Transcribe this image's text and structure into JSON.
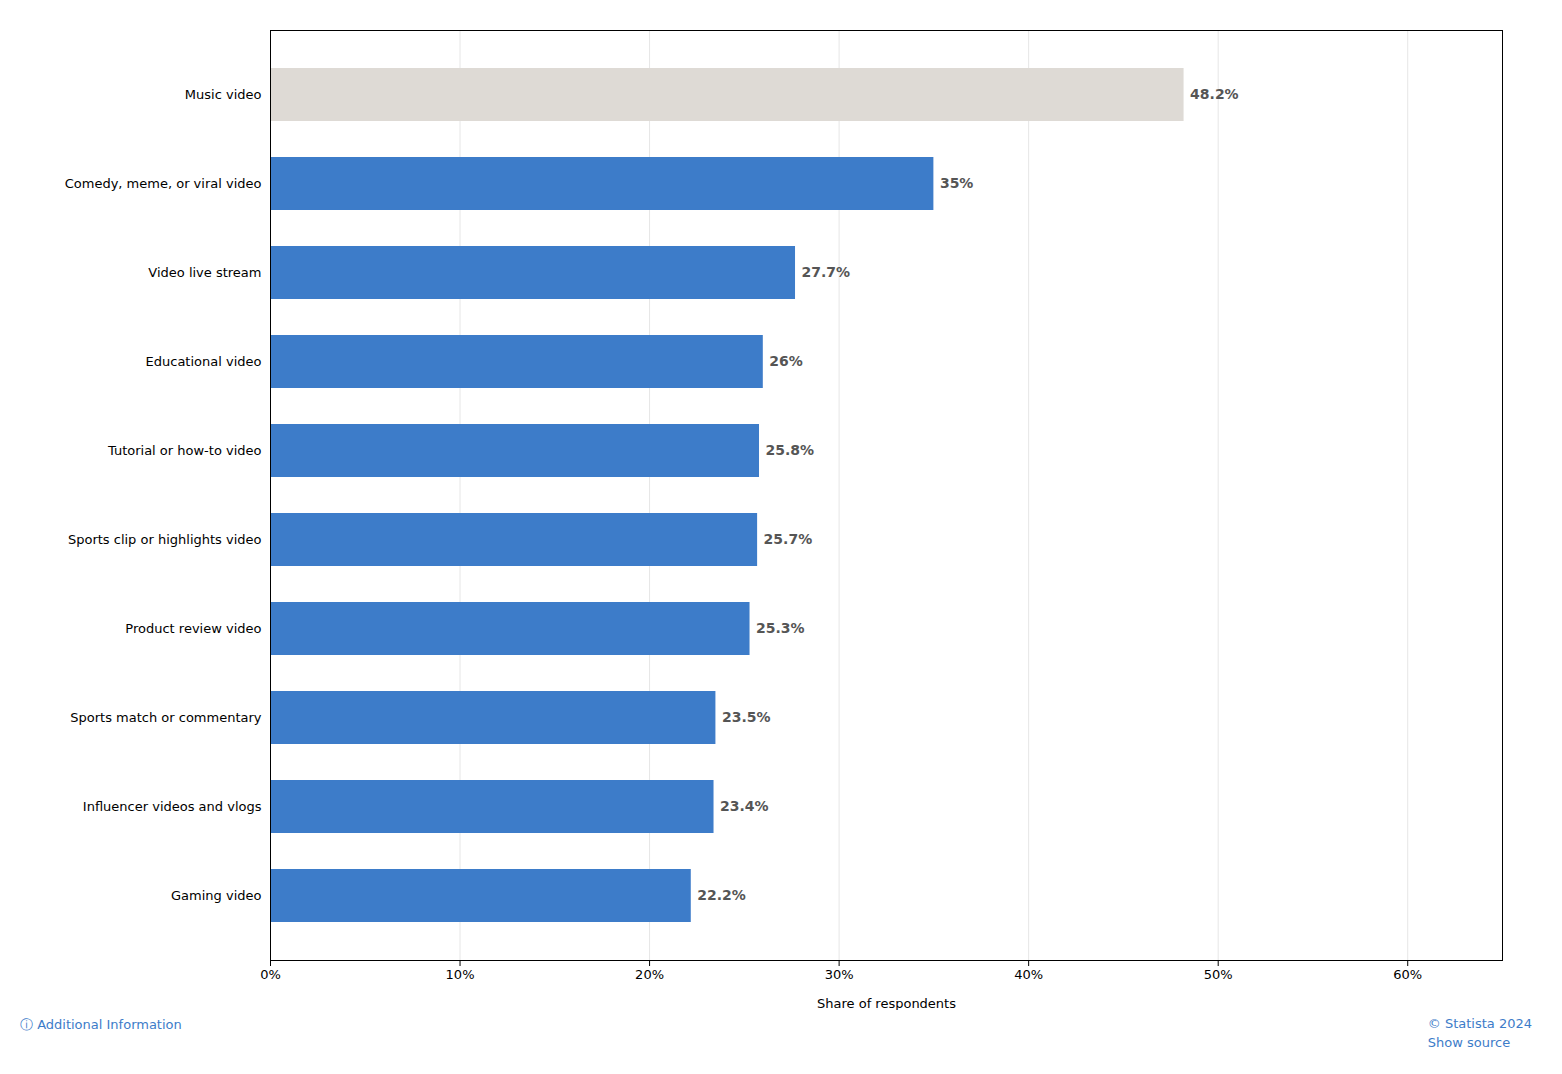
{
  "chart_data": {
    "type": "bar",
    "orientation": "horizontal",
    "categories": [
      "Gaming video",
      "Influencer videos and vlogs",
      "Sports match or commentary",
      "Product review video",
      "Sports clip or highlights video",
      "Tutorial or how-to video",
      "Educational video",
      "Video live stream",
      "Comedy, meme, or viral video",
      "Music video"
    ],
    "values": [
      22.2,
      23.4,
      23.5,
      25.3,
      25.7,
      25.8,
      26.0,
      27.7,
      35.0,
      48.2
    ],
    "value_labels": [
      "22.2%",
      "23.4%",
      "23.5%",
      "25.3%",
      "25.7%",
      "25.8%",
      "26%",
      "27.7%",
      "35%",
      "48.2%"
    ],
    "colors": [
      "#3d7cc9",
      "#3d7cc9",
      "#3d7cc9",
      "#3d7cc9",
      "#3d7cc9",
      "#3d7cc9",
      "#3d7cc9",
      "#3d7cc9",
      "#3d7cc9",
      "#dedad5"
    ],
    "xlabel": "Share of respondents",
    "xlim": [
      0,
      65
    ],
    "xticks": [
      {
        "value": 0,
        "label": "0%"
      },
      {
        "value": 10,
        "label": "10%"
      },
      {
        "value": 20,
        "label": "20%"
      },
      {
        "value": 30,
        "label": "30%"
      },
      {
        "value": 40,
        "label": "40%"
      },
      {
        "value": 50,
        "label": "50%"
      },
      {
        "value": 60,
        "label": "60%"
      }
    ],
    "grid": true,
    "data_labels": true,
    "annotations": [
      "ⓘ Additional Information",
      "© Statista 2024",
      "Show source"
    ]
  }
}
